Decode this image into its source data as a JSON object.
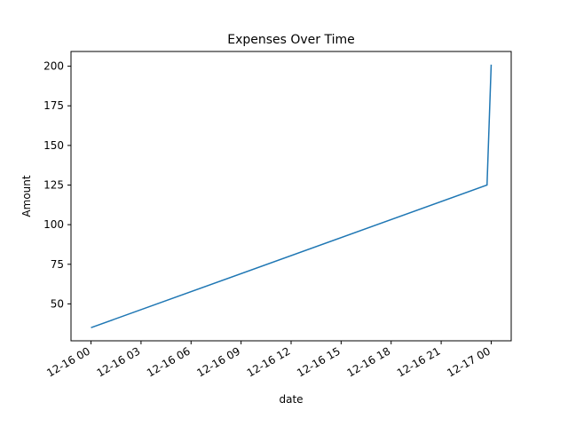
{
  "chart_data": {
    "type": "line",
    "title": "Expenses Over Time",
    "xlabel": "date",
    "ylabel": "Amount",
    "grid": false,
    "x": [
      "2023-12-16T00:00",
      "2023-12-16T23:45",
      "2023-12-17T00:00"
    ],
    "series": [
      {
        "values": [
          35,
          125,
          201
        ]
      }
    ],
    "x_ticks": [
      "12-16 00",
      "12-16 03",
      "12-16 06",
      "12-16 09",
      "12-16 12",
      "12-16 15",
      "12-16 18",
      "12-16 21",
      "12-17 00"
    ],
    "y_ticks": [
      50,
      75,
      100,
      125,
      150,
      175,
      200
    ],
    "line_color": "#1f77b4"
  }
}
